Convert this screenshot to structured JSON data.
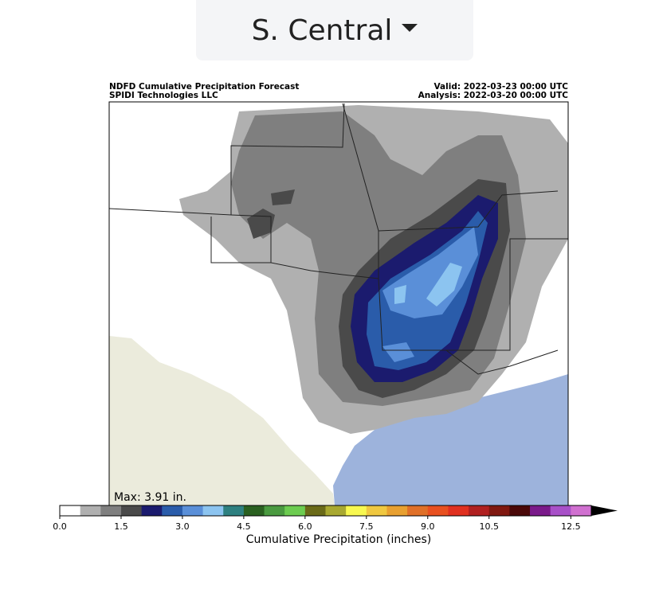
{
  "dropdown": {
    "label": "S. Central"
  },
  "map": {
    "title": "NDFD Cumulative Precipitation Forecast",
    "subtitle": "SPIDI Technologies LLC",
    "valid": "Valid: 2022-03-23 00:00 UTC",
    "analysis": "Analysis: 2022-03-20 00:00 UTC",
    "max_note": "Max: 3.91 in."
  },
  "colorbar": {
    "label": "Cumulative Precipitation (inches)",
    "range": [
      0,
      13
    ],
    "colors": [
      "#ffffff",
      "#b0b0b0",
      "#7f7f7f",
      "#4a4a4a",
      "#1b1b6e",
      "#2a5caa",
      "#5a8fd8",
      "#8cc4f0",
      "#2e8080",
      "#2a6020",
      "#4a9a40",
      "#6ccc50",
      "#6a6a18",
      "#a8a830",
      "#f8f850",
      "#f0c840",
      "#e8a030",
      "#e07028",
      "#e85020",
      "#e03020",
      "#b02020",
      "#801810",
      "#4a0808",
      "#7a1a8a",
      "#a850c8",
      "#d070d0"
    ],
    "extend_color": "#000000",
    "ticks": [
      {
        "value": 0,
        "label": "0.0"
      },
      1.5,
      {
        "value": 3,
        "label": "3.0"
      },
      4.5,
      {
        "value": 6,
        "label": "6.0"
      },
      7.5,
      {
        "value": 9,
        "label": "9.0"
      },
      10.5,
      12.5
    ]
  }
}
